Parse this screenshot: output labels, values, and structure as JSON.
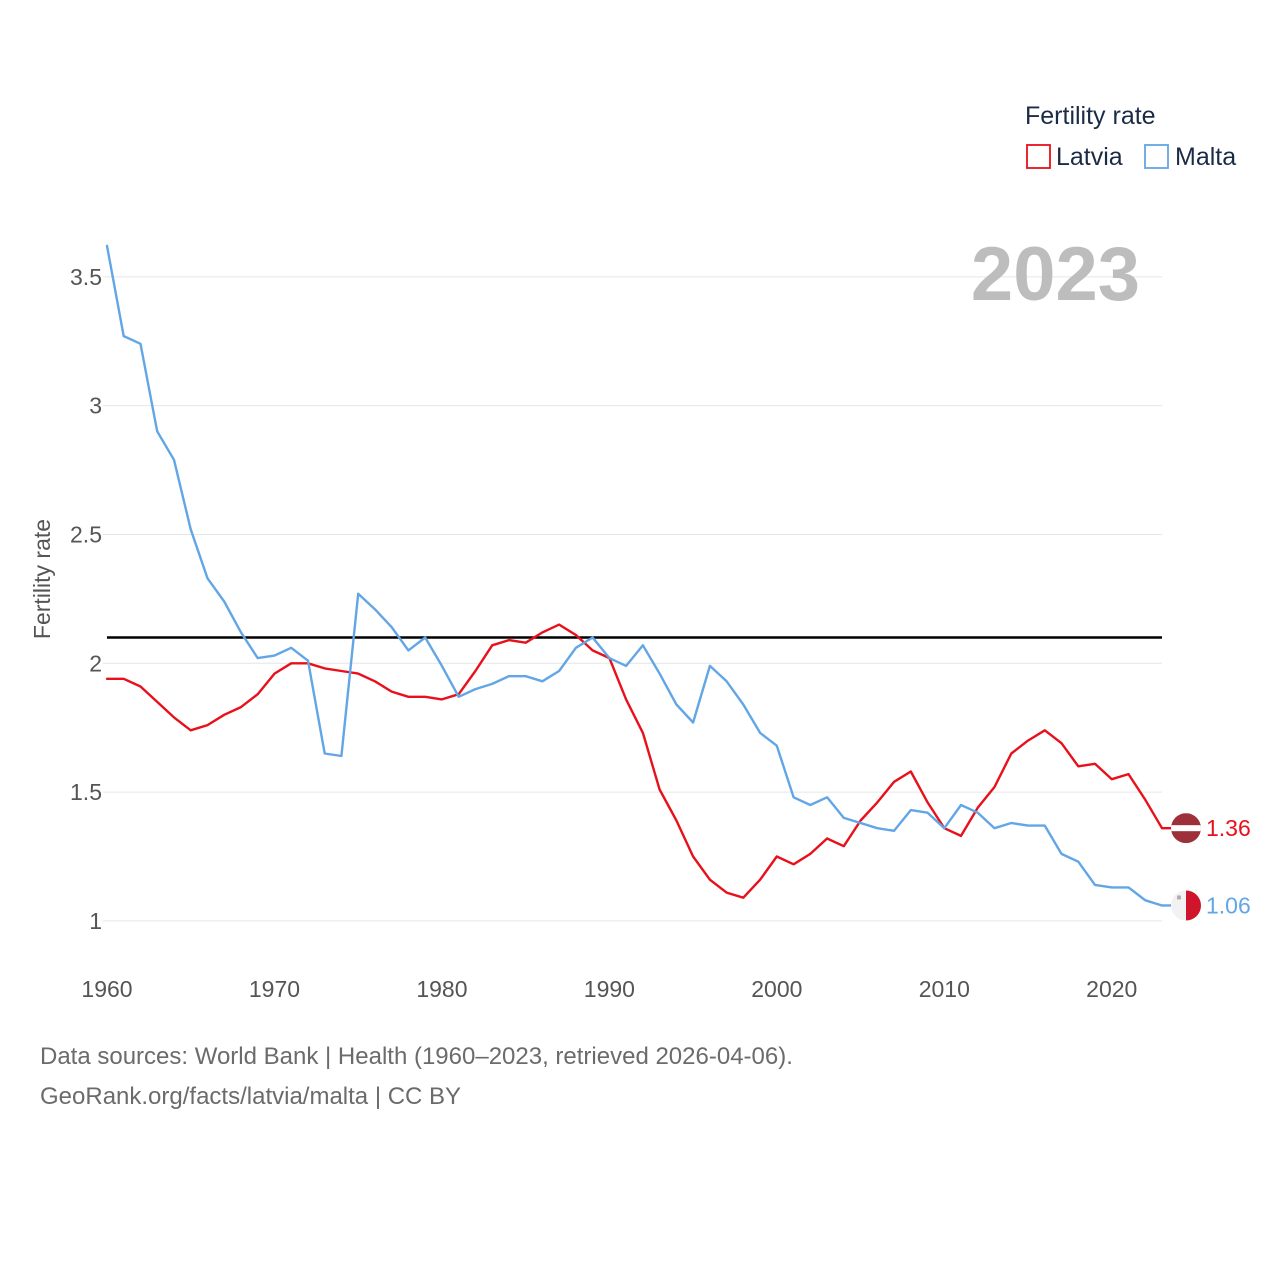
{
  "chart_data": {
    "type": "line",
    "title": "Fertility rate",
    "ylabel": "Fertility rate",
    "xlabel": "",
    "xlim": [
      1960,
      2023
    ],
    "ylim": [
      0.86,
      3.74
    ],
    "x_ticks": [
      1960,
      1970,
      1980,
      1990,
      2000,
      2010,
      2020
    ],
    "y_ticks": [
      1,
      1.5,
      2,
      2.5,
      3,
      3.5
    ],
    "y_tick_labels": [
      "1",
      "1.5",
      "2",
      "2.5",
      "3",
      "3.5"
    ],
    "grid": "horizontal",
    "legend_position": "top-right",
    "current_year": "2023",
    "reference_line": {
      "value": 2.1,
      "color": "#000000"
    },
    "x": [
      1960,
      1961,
      1962,
      1963,
      1964,
      1965,
      1966,
      1967,
      1968,
      1969,
      1970,
      1971,
      1972,
      1973,
      1974,
      1975,
      1976,
      1977,
      1978,
      1979,
      1980,
      1981,
      1982,
      1983,
      1984,
      1985,
      1986,
      1987,
      1988,
      1989,
      1990,
      1991,
      1992,
      1993,
      1994,
      1995,
      1996,
      1997,
      1998,
      1999,
      2000,
      2001,
      2002,
      2003,
      2004,
      2005,
      2006,
      2007,
      2008,
      2009,
      2010,
      2011,
      2012,
      2013,
      2014,
      2015,
      2016,
      2017,
      2018,
      2019,
      2020,
      2021,
      2022,
      2023
    ],
    "series": [
      {
        "name": "Latvia",
        "color": "#e8101b",
        "end_label": "1.36",
        "flag": "latvia",
        "values": [
          1.94,
          1.94,
          1.91,
          1.85,
          1.79,
          1.74,
          1.76,
          1.8,
          1.83,
          1.88,
          1.96,
          2.0,
          2.0,
          1.98,
          1.97,
          1.96,
          1.93,
          1.89,
          1.87,
          1.87,
          1.86,
          1.88,
          1.97,
          2.07,
          2.09,
          2.08,
          2.12,
          2.15,
          2.11,
          2.05,
          2.02,
          1.86,
          1.73,
          1.51,
          1.39,
          1.25,
          1.16,
          1.11,
          1.09,
          1.16,
          1.25,
          1.22,
          1.26,
          1.32,
          1.29,
          1.39,
          1.46,
          1.54,
          1.58,
          1.46,
          1.36,
          1.33,
          1.44,
          1.52,
          1.65,
          1.7,
          1.74,
          1.69,
          1.6,
          1.61,
          1.55,
          1.57,
          1.47,
          1.36
        ]
      },
      {
        "name": "Malta",
        "color": "#62a6e6",
        "end_label": "1.06",
        "flag": "malta",
        "values": [
          3.62,
          3.27,
          3.24,
          2.9,
          2.79,
          2.52,
          2.33,
          2.24,
          2.12,
          2.02,
          2.03,
          2.06,
          2.01,
          1.65,
          1.64,
          2.27,
          2.21,
          2.14,
          2.05,
          2.1,
          1.99,
          1.87,
          1.9,
          1.92,
          1.95,
          1.95,
          1.93,
          1.97,
          2.06,
          2.1,
          2.02,
          1.99,
          2.07,
          1.96,
          1.84,
          1.77,
          1.99,
          1.93,
          1.84,
          1.73,
          1.68,
          1.48,
          1.45,
          1.48,
          1.4,
          1.38,
          1.36,
          1.35,
          1.43,
          1.42,
          1.36,
          1.45,
          1.42,
          1.36,
          1.38,
          1.37,
          1.37,
          1.26,
          1.23,
          1.14,
          1.13,
          1.13,
          1.08,
          1.06
        ]
      }
    ]
  },
  "footer": {
    "source": "Data sources: World Bank | Health (1960–2023, retrieved 2026-04-06).",
    "credit": "GeoRank.org/facts/latvia/malta | CC BY"
  }
}
